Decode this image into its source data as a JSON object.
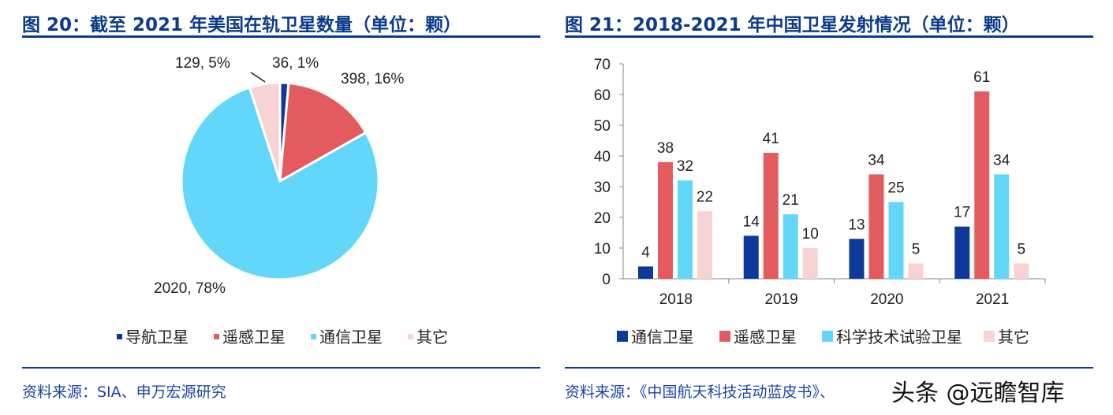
{
  "left": {
    "title": "图 20：截至 2021 年美国在轨卫星数量（单位：颗）",
    "source": "资料来源：SIA、申万宏源研究"
  },
  "right": {
    "title": "图 21：2018-2021 年中国卫星发射情况（单位：颗）",
    "source": "资料来源：《中国航天科技活动蓝皮书》、",
    "watermark": "头条 @远瞻智库"
  },
  "chart_data": [
    {
      "type": "pie",
      "categories": [
        "导航卫星",
        "遥感卫星",
        "通信卫星",
        "其它"
      ],
      "values": [
        36,
        398,
        2020,
        129
      ],
      "percent_labels": [
        "36, 1%",
        "398, 16%",
        "2020, 78%",
        "129, 5%"
      ],
      "colors": [
        "#0d3a9a",
        "#e35b5f",
        "#62d7fa",
        "#f8d3d4"
      ],
      "legend": "bottom"
    },
    {
      "type": "bar",
      "categories": [
        "2018",
        "2019",
        "2020",
        "2021"
      ],
      "series": [
        {
          "name": "通信卫星",
          "values": [
            4,
            14,
            13,
            17
          ],
          "color": "#0d3a9a"
        },
        {
          "name": "遥感卫星",
          "values": [
            38,
            41,
            34,
            61
          ],
          "color": "#e35b5f"
        },
        {
          "name": "科学技术试验卫星",
          "values": [
            32,
            21,
            25,
            34
          ],
          "color": "#62d7fa"
        },
        {
          "name": "其它",
          "values": [
            22,
            10,
            5,
            5
          ],
          "color": "#f8d3d4"
        }
      ],
      "ylim": [
        0,
        70
      ],
      "yticks": [
        0,
        10,
        20,
        30,
        40,
        50,
        60,
        70
      ],
      "legend": "bottom",
      "grid": false
    }
  ]
}
